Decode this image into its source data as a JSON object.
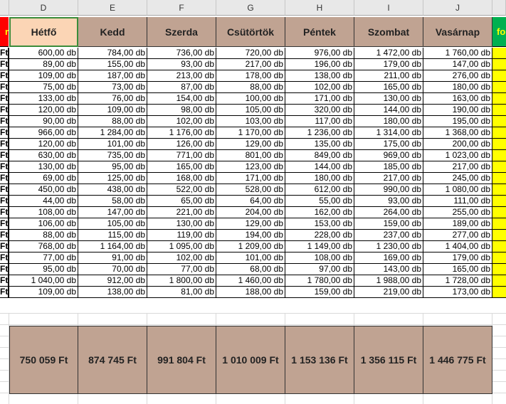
{
  "columns": [
    "D",
    "E",
    "F",
    "G",
    "H",
    "I",
    "J"
  ],
  "left_edge": {
    "header_text": "r",
    "row_suffix": "Ft"
  },
  "right_edge": {
    "header_text": "fo"
  },
  "days": [
    "Hétfő",
    "Kedd",
    "Szerda",
    "Csütörtök",
    "Péntek",
    "Szombat",
    "Vasárnap"
  ],
  "rows": [
    [
      "600,00 db",
      "784,00 db",
      "736,00 db",
      "720,00 db",
      "976,00 db",
      "1 472,00 db",
      "1 760,00 db"
    ],
    [
      "89,00 db",
      "155,00 db",
      "93,00 db",
      "217,00 db",
      "196,00 db",
      "179,00 db",
      "147,00 db"
    ],
    [
      "109,00 db",
      "187,00 db",
      "213,00 db",
      "178,00 db",
      "138,00 db",
      "211,00 db",
      "276,00 db"
    ],
    [
      "75,00 db",
      "73,00 db",
      "87,00 db",
      "88,00 db",
      "102,00 db",
      "165,00 db",
      "180,00 db"
    ],
    [
      "133,00 db",
      "76,00 db",
      "154,00 db",
      "100,00 db",
      "171,00 db",
      "130,00 db",
      "163,00 db"
    ],
    [
      "120,00 db",
      "109,00 db",
      "98,00 db",
      "105,00 db",
      "320,00 db",
      "144,00 db",
      "190,00 db"
    ],
    [
      "90,00 db",
      "88,00 db",
      "102,00 db",
      "103,00 db",
      "117,00 db",
      "180,00 db",
      "195,00 db"
    ],
    [
      "966,00 db",
      "1 284,00 db",
      "1 176,00 db",
      "1 170,00 db",
      "1 236,00 db",
      "1 314,00 db",
      "1 368,00 db"
    ],
    [
      "120,00 db",
      "101,00 db",
      "126,00 db",
      "129,00 db",
      "135,00 db",
      "175,00 db",
      "200,00 db"
    ],
    [
      "630,00 db",
      "735,00 db",
      "771,00 db",
      "801,00 db",
      "849,00 db",
      "969,00 db",
      "1 023,00 db"
    ],
    [
      "130,00 db",
      "95,00 db",
      "165,00 db",
      "123,00 db",
      "144,00 db",
      "185,00 db",
      "217,00 db"
    ],
    [
      "69,00 db",
      "125,00 db",
      "168,00 db",
      "171,00 db",
      "180,00 db",
      "217,00 db",
      "245,00 db"
    ],
    [
      "450,00 db",
      "438,00 db",
      "522,00 db",
      "528,00 db",
      "612,00 db",
      "990,00 db",
      "1 080,00 db"
    ],
    [
      "44,00 db",
      "58,00 db",
      "65,00 db",
      "64,00 db",
      "55,00 db",
      "93,00 db",
      "111,00 db"
    ],
    [
      "108,00 db",
      "147,00 db",
      "221,00 db",
      "204,00 db",
      "162,00 db",
      "264,00 db",
      "255,00 db"
    ],
    [
      "106,00 db",
      "105,00 db",
      "130,00 db",
      "129,00 db",
      "153,00 db",
      "159,00 db",
      "189,00 db"
    ],
    [
      "88,00 db",
      "115,00 db",
      "119,00 db",
      "194,00 db",
      "228,00 db",
      "237,00 db",
      "277,00 db"
    ],
    [
      "768,00 db",
      "1 164,00 db",
      "1 095,00 db",
      "1 209,00 db",
      "1 149,00 db",
      "1 230,00 db",
      "1 404,00 db"
    ],
    [
      "77,00 db",
      "91,00 db",
      "102,00 db",
      "101,00 db",
      "108,00 db",
      "169,00 db",
      "179,00 db"
    ],
    [
      "95,00 db",
      "70,00 db",
      "77,00 db",
      "68,00 db",
      "97,00 db",
      "143,00 db",
      "165,00 db"
    ],
    [
      "1 040,00 db",
      "912,00 db",
      "1 800,00 db",
      "1 460,00 db",
      "1 780,00 db",
      "1 988,00 db",
      "1 728,00 db"
    ],
    [
      "109,00 db",
      "138,00 db",
      "81,00 db",
      "188,00 db",
      "159,00 db",
      "219,00 db",
      "173,00 db"
    ]
  ],
  "totals": [
    "750 059 Ft",
    "874 745 Ft",
    "991 804 Ft",
    "1 010 009 Ft",
    "1 153 136 Ft",
    "1 356 115 Ft",
    "1 446 775 Ft"
  ],
  "colors": {
    "header_bg": "#c0a392",
    "selected_header_bg": "#fbd5b5",
    "edge_red": "#ff0000",
    "edge_green": "#00b050",
    "yellow": "#ffff00"
  }
}
